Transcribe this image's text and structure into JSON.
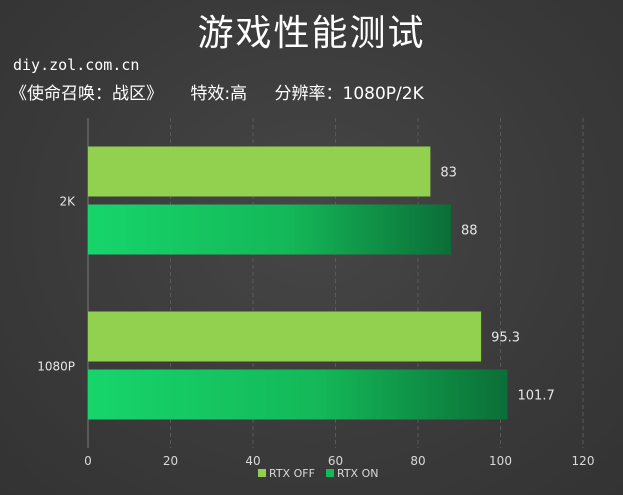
{
  "header": {
    "title": "游戏性能测试",
    "site": "diy.zol.com.cn",
    "game": "《使命召唤：战区》",
    "effects": "特效:高",
    "resolution": "分辨率：1080P/2K"
  },
  "chart_data": {
    "type": "bar",
    "orientation": "horizontal",
    "categories": [
      "2K",
      "1080P"
    ],
    "series": [
      {
        "name": "RTX OFF",
        "values": [
          83,
          95.3
        ],
        "color": "#92d050"
      },
      {
        "name": "RTX ON",
        "values": [
          88,
          101.7
        ],
        "color": "#1ec865"
      }
    ],
    "xlim": [
      0,
      120
    ],
    "xticks": [
      "0",
      "20",
      "40",
      "60",
      "80",
      "100",
      "120"
    ],
    "data_labels": [
      [
        "83",
        "95.3"
      ],
      [
        "88",
        "101.7"
      ]
    ],
    "grid": true,
    "legend": "bottom-center"
  }
}
